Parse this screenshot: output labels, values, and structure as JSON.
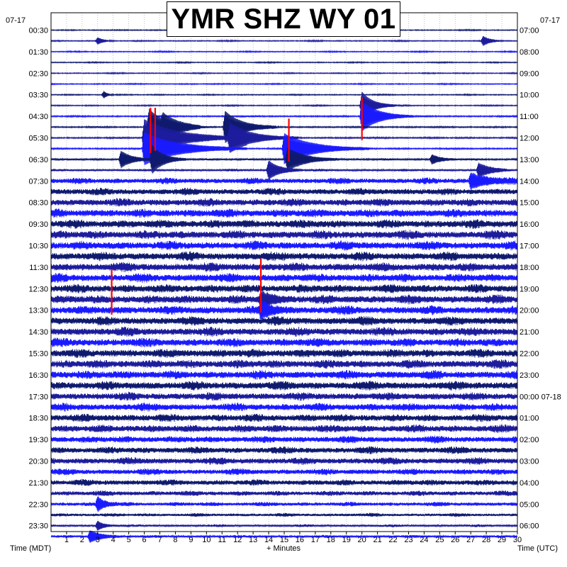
{
  "title": "YMR SHZ WY 01",
  "left_date": "07-17",
  "right_date": "07-17",
  "left_axis_label": "Time (MDT)",
  "right_axis_label": "Time (UTC)",
  "x_axis_label": "+ Minutes",
  "colors": {
    "trace_dark": "#0f1a6e",
    "trace_mid": "#1c1c9c",
    "trace_bright": "#1a1aff",
    "clip": "#ff0000",
    "grid": "#9a9a9a",
    "frame": "#000000"
  },
  "chart_data": {
    "type": "helicorder",
    "x": {
      "min": 0,
      "max": 30,
      "ticks": [
        1,
        2,
        3,
        4,
        5,
        6,
        7,
        8,
        9,
        10,
        11,
        12,
        13,
        14,
        15,
        16,
        17,
        18,
        19,
        20,
        21,
        22,
        23,
        24,
        25,
        26,
        27,
        28,
        29,
        30
      ]
    },
    "rows_per_hour": 2,
    "row_count": 48,
    "left_hour_labels": [
      "00:30",
      "01:30",
      "02:30",
      "03:30",
      "04:30",
      "05:30",
      "06:30",
      "07:30",
      "08:30",
      "09:30",
      "10:30",
      "11:30",
      "12:30",
      "13:30",
      "14:30",
      "15:30",
      "16:30",
      "17:30",
      "18:30",
      "19:30",
      "20:30",
      "21:30",
      "22:30",
      "23:30"
    ],
    "right_hour_labels": [
      "07:00",
      "08:00",
      "09:00",
      "10:00",
      "11:00",
      "12:00",
      "13:00",
      "14:00",
      "15:00",
      "16:00",
      "17:00",
      "18:00",
      "19:00",
      "20:00",
      "21:00",
      "22:00",
      "23:00",
      "00:00 07-18",
      "01:00",
      "02:00",
      "03:00",
      "04:00",
      "05:00",
      "06:00"
    ],
    "color_cycle": [
      "trace_dark",
      "trace_mid",
      "trace_bright"
    ],
    "noise_amplitude_by_row": [
      0.15,
      0.15,
      0.15,
      0.15,
      0.15,
      0.15,
      0.15,
      0.15,
      0.2,
      0.2,
      0.2,
      0.2,
      0.25,
      0.3,
      0.7,
      0.8,
      0.9,
      1.0,
      1.0,
      1.0,
      1.0,
      1.0,
      1.0,
      1.0,
      1.0,
      1.0,
      1.0,
      1.0,
      1.0,
      1.0,
      1.0,
      1.0,
      1.0,
      1.0,
      0.9,
      0.9,
      0.9,
      0.9,
      0.8,
      0.8,
      0.8,
      0.7,
      0.7,
      0.6,
      0.5,
      0.4,
      0.3,
      0.3
    ],
    "events": [
      {
        "row": 1,
        "minute": 3.0,
        "amplitude": 1.5,
        "duration": 0.5
      },
      {
        "row": 1,
        "minute": 27.8,
        "amplitude": 2.0,
        "duration": 0.6
      },
      {
        "row": 6,
        "minute": 3.4,
        "amplitude": 1.5,
        "duration": 0.3
      },
      {
        "row": 7,
        "minute": 20.0,
        "amplitude": 6.0,
        "duration": 1.0
      },
      {
        "row": 8,
        "minute": 20.0,
        "amplitude": 6.5,
        "duration": 1.5
      },
      {
        "row": 9,
        "minute": 6.3,
        "amplitude": 8.0,
        "duration": 1.5
      },
      {
        "row": 9,
        "minute": 7.2,
        "amplitude": 3.0,
        "duration": 1.5
      },
      {
        "row": 9,
        "minute": 11.2,
        "amplitude": 7.0,
        "duration": 1.5
      },
      {
        "row": 10,
        "minute": 6.0,
        "amplitude": 8.0,
        "duration": 3.0
      },
      {
        "row": 10,
        "minute": 11.5,
        "amplitude": 6.0,
        "duration": 2.0
      },
      {
        "row": 11,
        "minute": 6.0,
        "amplitude": 7.0,
        "duration": 3.0
      },
      {
        "row": 11,
        "minute": 15.0,
        "amplitude": 6.5,
        "duration": 2.5
      },
      {
        "row": 12,
        "minute": 4.5,
        "amplitude": 3.5,
        "duration": 1.0
      },
      {
        "row": 12,
        "minute": 6.5,
        "amplitude": 6.0,
        "duration": 1.0
      },
      {
        "row": 12,
        "minute": 15.2,
        "amplitude": 5.0,
        "duration": 1.5
      },
      {
        "row": 12,
        "minute": 24.5,
        "amplitude": 2.0,
        "duration": 0.8
      },
      {
        "row": 13,
        "minute": 14.0,
        "amplitude": 4.0,
        "duration": 1.0
      },
      {
        "row": 13,
        "minute": 27.5,
        "amplitude": 3.0,
        "duration": 1.0
      },
      {
        "row": 14,
        "minute": 27.0,
        "amplitude": 3.0,
        "duration": 1.5
      },
      {
        "row": 25,
        "minute": 13.5,
        "amplitude": 3.0,
        "duration": 1.0
      },
      {
        "row": 26,
        "minute": 13.5,
        "amplitude": 3.0,
        "duration": 1.0
      },
      {
        "row": 44,
        "minute": 3.0,
        "amplitude": 3.0,
        "duration": 0.6
      },
      {
        "row": 46,
        "minute": 3.0,
        "amplitude": 2.0,
        "duration": 0.5
      },
      {
        "row": 47,
        "minute": 2.5,
        "amplitude": 2.5,
        "duration": 1.0
      }
    ],
    "clipped_events": [
      {
        "row": 8,
        "minute": 6.4,
        "rows_spanned": 2.1
      },
      {
        "row": 8,
        "minute": 6.7,
        "rows_spanned": 2.0
      },
      {
        "row": 7,
        "minute": 20.0,
        "rows_spanned": 2.0
      },
      {
        "row": 9,
        "minute": 15.3,
        "rows_spanned": 2.0
      },
      {
        "row": 23,
        "minute": 3.9,
        "rows_spanned": 2.1
      },
      {
        "row": 22,
        "minute": 13.5,
        "rows_spanned": 2.5
      }
    ]
  }
}
